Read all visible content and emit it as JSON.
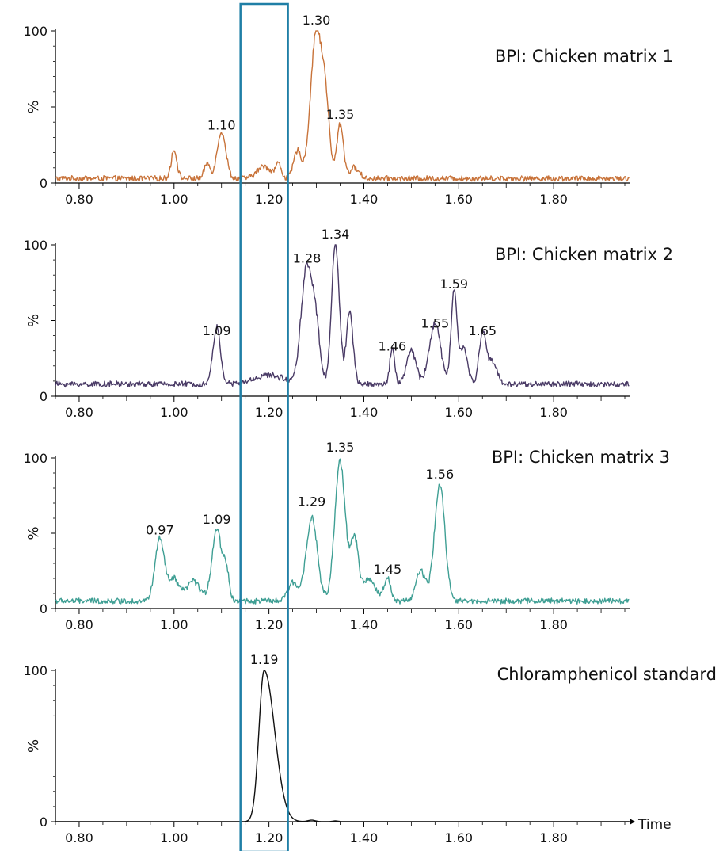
{
  "x_axis_title": "Time",
  "highlight_window": {
    "x_start": 1.14,
    "x_end": 1.24,
    "color": "#1f7fa6"
  },
  "chart_data": [
    {
      "type": "line",
      "title": "BPI: Chicken matrix 1",
      "ylabel": "%",
      "xlim": [
        0.75,
        1.96
      ],
      "ylim": [
        0,
        100
      ],
      "y_ticks": [
        0,
        100
      ],
      "y_mid_label": "%",
      "x_ticks": [
        "0.80",
        "1.00",
        "1.20",
        "1.40",
        "1.60",
        "1.80"
      ],
      "color": "#c8733a",
      "baseline": 3,
      "peaks": [
        {
          "x": 1.0,
          "y": 19,
          "w": 0.006
        },
        {
          "x": 1.07,
          "y": 10,
          "w": 0.006
        },
        {
          "x": 1.1,
          "y": 31,
          "w": 0.009
        },
        {
          "x": 1.19,
          "y": 8,
          "w": 0.015
        },
        {
          "x": 1.22,
          "y": 9,
          "w": 0.006
        },
        {
          "x": 1.26,
          "y": 18,
          "w": 0.008
        },
        {
          "x": 1.3,
          "y": 97,
          "w": 0.012
        },
        {
          "x": 1.32,
          "y": 40,
          "w": 0.008
        },
        {
          "x": 1.35,
          "y": 36,
          "w": 0.007
        },
        {
          "x": 1.38,
          "y": 7,
          "w": 0.01
        }
      ],
      "peak_labels": [
        {
          "x": 1.1,
          "y": 31,
          "label": "1.10"
        },
        {
          "x": 1.3,
          "y": 100,
          "label": "1.30"
        },
        {
          "x": 1.35,
          "y": 38,
          "label": "1.35"
        }
      ]
    },
    {
      "type": "line",
      "title": "BPI: Chicken matrix 2",
      "ylabel": "%",
      "xlim": [
        0.75,
        1.96
      ],
      "ylim": [
        0,
        100
      ],
      "y_ticks": [
        0,
        100
      ],
      "y_mid_label": "%",
      "x_ticks": [
        "0.80",
        "1.00",
        "1.20",
        "1.40",
        "1.60",
        "1.80"
      ],
      "color": "#4a3b66",
      "baseline": 8,
      "peaks": [
        {
          "x": 1.09,
          "y": 37,
          "w": 0.008
        },
        {
          "x": 1.2,
          "y": 6,
          "w": 0.03
        },
        {
          "x": 1.28,
          "y": 78,
          "w": 0.012
        },
        {
          "x": 1.3,
          "y": 30,
          "w": 0.008
        },
        {
          "x": 1.34,
          "y": 94,
          "w": 0.008
        },
        {
          "x": 1.37,
          "y": 48,
          "w": 0.007
        },
        {
          "x": 1.46,
          "y": 24,
          "w": 0.005
        },
        {
          "x": 1.5,
          "y": 22,
          "w": 0.01
        },
        {
          "x": 1.55,
          "y": 40,
          "w": 0.012
        },
        {
          "x": 1.59,
          "y": 62,
          "w": 0.006
        },
        {
          "x": 1.61,
          "y": 25,
          "w": 0.008
        },
        {
          "x": 1.65,
          "y": 34,
          "w": 0.007
        },
        {
          "x": 1.67,
          "y": 15,
          "w": 0.01
        }
      ],
      "peak_labels": [
        {
          "x": 1.09,
          "y": 36,
          "label": "1.09"
        },
        {
          "x": 1.28,
          "y": 84,
          "label": "1.28"
        },
        {
          "x": 1.34,
          "y": 100,
          "label": "1.34"
        },
        {
          "x": 1.46,
          "y": 26,
          "label": "1.46"
        },
        {
          "x": 1.55,
          "y": 41,
          "label": "1.55"
        },
        {
          "x": 1.59,
          "y": 67,
          "label": "1.59"
        },
        {
          "x": 1.65,
          "y": 36,
          "label": "1.65"
        }
      ]
    },
    {
      "type": "line",
      "title": "BPI: Chicken matrix 3",
      "ylabel": "%",
      "xlim": [
        0.75,
        1.96
      ],
      "ylim": [
        0,
        100
      ],
      "y_ticks": [
        0,
        100
      ],
      "y_mid_label": "%",
      "x_ticks": [
        "0.80",
        "1.00",
        "1.20",
        "1.40",
        "1.60",
        "1.80"
      ],
      "color": "#3f9f94",
      "baseline": 5,
      "peaks": [
        {
          "x": 0.97,
          "y": 41,
          "w": 0.01
        },
        {
          "x": 1.0,
          "y": 14,
          "w": 0.01
        },
        {
          "x": 1.04,
          "y": 13,
          "w": 0.015
        },
        {
          "x": 1.09,
          "y": 48,
          "w": 0.01
        },
        {
          "x": 1.11,
          "y": 20,
          "w": 0.006
        },
        {
          "x": 1.25,
          "y": 12,
          "w": 0.01
        },
        {
          "x": 1.29,
          "y": 55,
          "w": 0.012
        },
        {
          "x": 1.35,
          "y": 93,
          "w": 0.011
        },
        {
          "x": 1.38,
          "y": 40,
          "w": 0.008
        },
        {
          "x": 1.41,
          "y": 14,
          "w": 0.015
        },
        {
          "x": 1.45,
          "y": 15,
          "w": 0.007
        },
        {
          "x": 1.52,
          "y": 20,
          "w": 0.01
        },
        {
          "x": 1.56,
          "y": 77,
          "w": 0.011
        }
      ],
      "peak_labels": [
        {
          "x": 0.97,
          "y": 45,
          "label": "0.97"
        },
        {
          "x": 1.09,
          "y": 52,
          "label": "1.09"
        },
        {
          "x": 1.29,
          "y": 64,
          "label": "1.29"
        },
        {
          "x": 1.35,
          "y": 100,
          "label": "1.35"
        },
        {
          "x": 1.45,
          "y": 19,
          "label": "1.45"
        },
        {
          "x": 1.56,
          "y": 82,
          "label": "1.56"
        }
      ]
    },
    {
      "type": "line",
      "title": "Chloramphenicol standard",
      "ylabel": "%",
      "xlim": [
        0.75,
        1.96
      ],
      "ylim": [
        0,
        100
      ],
      "y_ticks": [
        0,
        100
      ],
      "y_mid_label": "%",
      "x_ticks": [
        "0.80",
        "1.00",
        "1.20",
        "1.40",
        "1.60",
        "1.80"
      ],
      "color": "#111111",
      "baseline": 0,
      "peaks": [
        {
          "x": 1.19,
          "y": 100,
          "w": 0.011,
          "tail": 0.022
        },
        {
          "x": 1.29,
          "y": 1,
          "w": 0.008
        },
        {
          "x": 1.34,
          "y": 0.5,
          "w": 0.006
        }
      ],
      "peak_labels": [
        {
          "x": 1.19,
          "y": 100,
          "label": "1.19"
        }
      ]
    }
  ]
}
